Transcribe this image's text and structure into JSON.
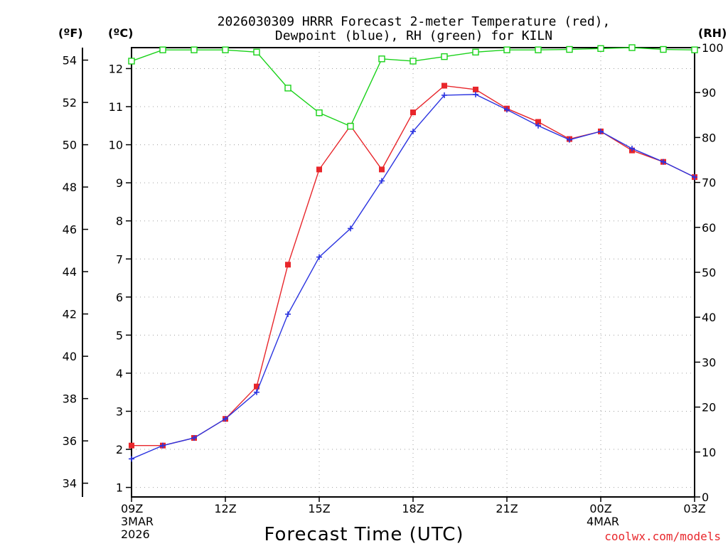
{
  "chart_data": {
    "type": "line",
    "title_line1": "2026030309 HRRR Forecast 2-meter Temperature (red),",
    "title_line2": "Dewpoint (blue), RH (green) for KILN",
    "xlabel": "Forecast Time (UTC)",
    "left_outer_label": "(ºF)",
    "left_inner_label": "(ºC)",
    "right_label": "(RH)",
    "credit": "coolwx.com/models",
    "x_hours": [
      0,
      1,
      2,
      3,
      4,
      5,
      6,
      7,
      8,
      9,
      10,
      11,
      12,
      13,
      14,
      15,
      16,
      17,
      18
    ],
    "xlim": [
      0,
      18
    ],
    "x_ticks": [
      {
        "h": 0,
        "label": "09Z",
        "sub1": "3MAR",
        "sub2": "2026"
      },
      {
        "h": 3,
        "label": "12Z",
        "sub1": "",
        "sub2": ""
      },
      {
        "h": 6,
        "label": "15Z",
        "sub1": "",
        "sub2": ""
      },
      {
        "h": 9,
        "label": "18Z",
        "sub1": "",
        "sub2": ""
      },
      {
        "h": 12,
        "label": "21Z",
        "sub1": "",
        "sub2": ""
      },
      {
        "h": 15,
        "label": "00Z",
        "sub1": "4MAR",
        "sub2": ""
      },
      {
        "h": 18,
        "label": "03Z",
        "sub1": "",
        "sub2": ""
      }
    ],
    "ylim_c": [
      0.75,
      12.55
    ],
    "c_ticks": [
      1,
      2,
      3,
      4,
      5,
      6,
      7,
      8,
      9,
      10,
      11,
      12
    ],
    "f_ticks": [
      34,
      36,
      38,
      40,
      42,
      44,
      46,
      48,
      50,
      52,
      54
    ],
    "ylim_rh": [
      0,
      100
    ],
    "rh_ticks": [
      0,
      10,
      20,
      30,
      40,
      50,
      60,
      70,
      80,
      90,
      100
    ],
    "series": [
      {
        "name": "Temperature",
        "color": "#e8262b",
        "marker": "filled-square",
        "values": [
          2.1,
          2.1,
          2.3,
          2.8,
          3.65,
          6.85,
          9.35,
          10.5,
          9.35,
          10.85,
          11.55,
          11.45,
          10.95,
          10.6,
          10.15,
          10.35,
          9.85,
          9.55,
          9.15
        ]
      },
      {
        "name": "Dewpoint",
        "color": "#2b34e0",
        "marker": "plus",
        "values": [
          1.75,
          2.1,
          2.3,
          2.8,
          3.5,
          5.55,
          7.05,
          7.8,
          9.05,
          10.35,
          11.3,
          11.32,
          10.92,
          10.5,
          10.13,
          10.35,
          9.9,
          9.55,
          9.15
        ]
      },
      {
        "name": "RH",
        "color": "#19d219",
        "marker": "open-square",
        "axis": "rh",
        "values": [
          97,
          99.5,
          99.5,
          99.5,
          99,
          91,
          85.5,
          82.5,
          97.5,
          97,
          98,
          99,
          99.5,
          99.5,
          99.6,
          99.8,
          100,
          99.6,
          99.5
        ]
      }
    ]
  }
}
